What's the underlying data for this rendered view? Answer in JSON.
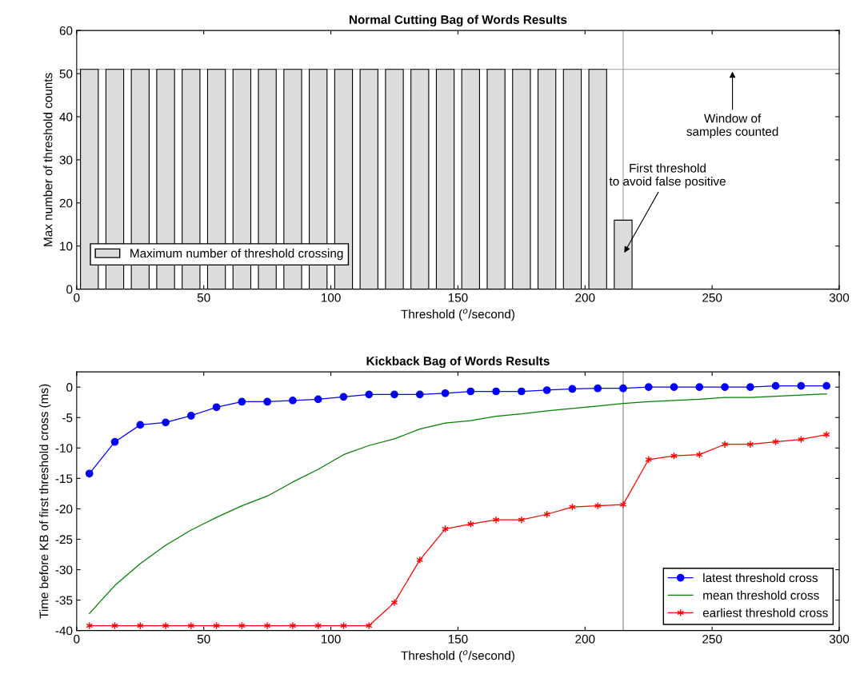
{
  "chart_data": [
    {
      "type": "bar",
      "title": "Normal Cutting Bag of Words Results",
      "xlabel": "Threshold ($^{o}$/second)",
      "ylabel": "Max number of threshold counts",
      "series": [
        {
          "name": "Maximum number of threshold crossing",
          "color": "#dcdcdc",
          "x": [
            5,
            15,
            25,
            35,
            45,
            55,
            65,
            75,
            85,
            95,
            105,
            115,
            125,
            135,
            145,
            155,
            165,
            175,
            185,
            195,
            205,
            215,
            225,
            235,
            245,
            255,
            265,
            275,
            285,
            295
          ],
          "values": [
            51,
            51,
            51,
            51,
            51,
            51,
            51,
            51,
            51,
            51,
            51,
            51,
            51,
            51,
            51,
            51,
            51,
            51,
            51,
            51,
            51,
            16,
            0,
            0,
            0,
            0,
            0,
            0,
            0,
            0
          ]
        }
      ],
      "xlim": [
        0,
        300
      ],
      "xticks": [
        0,
        50,
        100,
        150,
        200,
        250,
        300
      ],
      "ylim": [
        0,
        60
      ],
      "yticks": [
        0,
        10,
        20,
        30,
        40,
        50,
        60
      ],
      "ref_lines": [
        {
          "axis": "y",
          "value": 51,
          "color": "#a0a0a0"
        },
        {
          "axis": "x",
          "value": 215,
          "color": "#a0a0a0"
        }
      ],
      "annotations": [
        {
          "text": "Window of\nsamples counted",
          "x": 258,
          "y": 51
        },
        {
          "text": "First threshold\nto avoid false positive",
          "x": 215,
          "y": 8
        }
      ],
      "legend": "bottom left",
      "grid": false
    },
    {
      "type": "line",
      "title": "Kickback Bag of Words Results",
      "xlabel": "Threshold ($^{o}$/second)",
      "ylabel": "Time before KB of first threshold cross (ms)",
      "x": [
        5,
        15,
        25,
        35,
        45,
        55,
        65,
        75,
        85,
        95,
        105,
        115,
        125,
        135,
        145,
        155,
        165,
        175,
        185,
        195,
        205,
        215,
        225,
        235,
        245,
        255,
        265,
        275,
        285,
        295
      ],
      "series": [
        {
          "name": "latest threshold cross",
          "color": "#0000ff",
          "marker": "circle",
          "values": [
            -14.2,
            -9,
            -6.2,
            -5.8,
            -4.7,
            -3.3,
            -2.4,
            -2.4,
            -2.2,
            -2.0,
            -1.6,
            -1.2,
            -1.2,
            -1.2,
            -1.0,
            -0.7,
            -0.7,
            -0.7,
            -0.5,
            -0.3,
            -0.2,
            -0.2,
            0,
            0,
            0,
            0,
            0,
            0.2,
            0.2,
            0.2
          ]
        },
        {
          "name": "mean threshold cross",
          "color": "#008000",
          "marker": "none",
          "values": [
            -37.2,
            -32.6,
            -29,
            -26,
            -23.5,
            -21.4,
            -19.5,
            -17.9,
            -15.6,
            -13.5,
            -11.1,
            -9.6,
            -8.5,
            -6.9,
            -5.9,
            -5.5,
            -4.8,
            -4.4,
            -3.9,
            -3.5,
            -3.1,
            -2.7,
            -2.4,
            -2.2,
            -2.0,
            -1.7,
            -1.7,
            -1.5,
            -1.3,
            -1.1
          ]
        },
        {
          "name": "earliest threshold cross",
          "color": "#ff0000",
          "marker": "cross",
          "values": [
            -39.2,
            -39.2,
            -39.2,
            -39.2,
            -39.2,
            -39.2,
            -39.2,
            -39.2,
            -39.2,
            -39.2,
            -39.2,
            -39.2,
            -35.4,
            -28.4,
            -23.3,
            -22.5,
            -21.8,
            -21.8,
            -20.9,
            -19.7,
            -19.5,
            -19.3,
            -11.9,
            -11.3,
            -11.1,
            -9.4,
            -9.4,
            -9.0,
            -8.6,
            -7.8
          ]
        }
      ],
      "xlim": [
        0,
        300
      ],
      "xticks": [
        0,
        50,
        100,
        150,
        200,
        250,
        300
      ],
      "ylim": [
        -40,
        2.5
      ],
      "yticks": [
        -40,
        -35,
        -30,
        -25,
        -20,
        -15,
        -10,
        -5,
        0
      ],
      "ref_lines": [
        {
          "axis": "x",
          "value": 215,
          "color": "#808080"
        }
      ],
      "legend": "bottom right",
      "grid": false,
      "line_style": "solid"
    }
  ]
}
